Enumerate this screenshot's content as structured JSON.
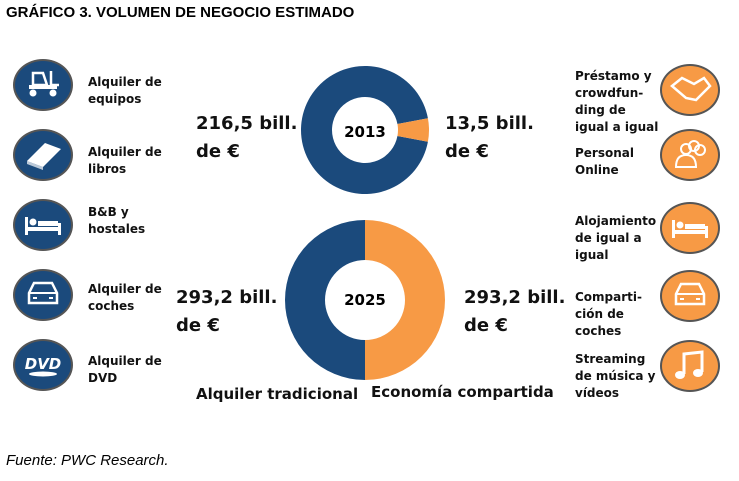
{
  "title": "GRÁFICO 3. VOLUMEN DE NEGOCIO ESTIMADO",
  "source": "Fuente: PWC Research.",
  "colors": {
    "traditional": "#1b4a7c",
    "sharing": "#f79a45"
  },
  "left_items": [
    {
      "label": "Alquiler de equipos",
      "icon": "forklift-icon"
    },
    {
      "label": "Alquiler de libros",
      "icon": "book-icon"
    },
    {
      "label": "B&B y hostales",
      "icon": "bed-icon"
    },
    {
      "label": "Alquiler de coches",
      "icon": "car-icon"
    },
    {
      "label": "Alquiler de DVD",
      "icon": "dvd-icon"
    }
  ],
  "right_items": [
    {
      "label": "Préstamo y crowdfun-ding de igual a igual",
      "icon": "handshake-icon"
    },
    {
      "label": "Personal Online",
      "icon": "people-icon"
    },
    {
      "label": "Alojamiento de igual a igual",
      "icon": "bed-icon"
    },
    {
      "label": "Comparti-ción de coches",
      "icon": "car-icon"
    },
    {
      "label": "Streaming de música y vídeos",
      "icon": "music-note-icon"
    }
  ],
  "chart_data": [
    {
      "type": "pie",
      "donut": true,
      "title": "2013",
      "categories": [
        "Alquiler tradicional",
        "Economía compartida"
      ],
      "values": [
        216.5,
        13.5
      ],
      "data_labels": [
        "216,5 bill. de €",
        "13,5 bill. de €"
      ]
    },
    {
      "type": "pie",
      "donut": true,
      "title": "2025",
      "categories": [
        "Alquiler tradicional",
        "Economía compartida"
      ],
      "values": [
        293.2,
        293.2
      ],
      "data_labels": [
        "293,2 bill. de €",
        "293,2 bill. de €"
      ]
    }
  ]
}
